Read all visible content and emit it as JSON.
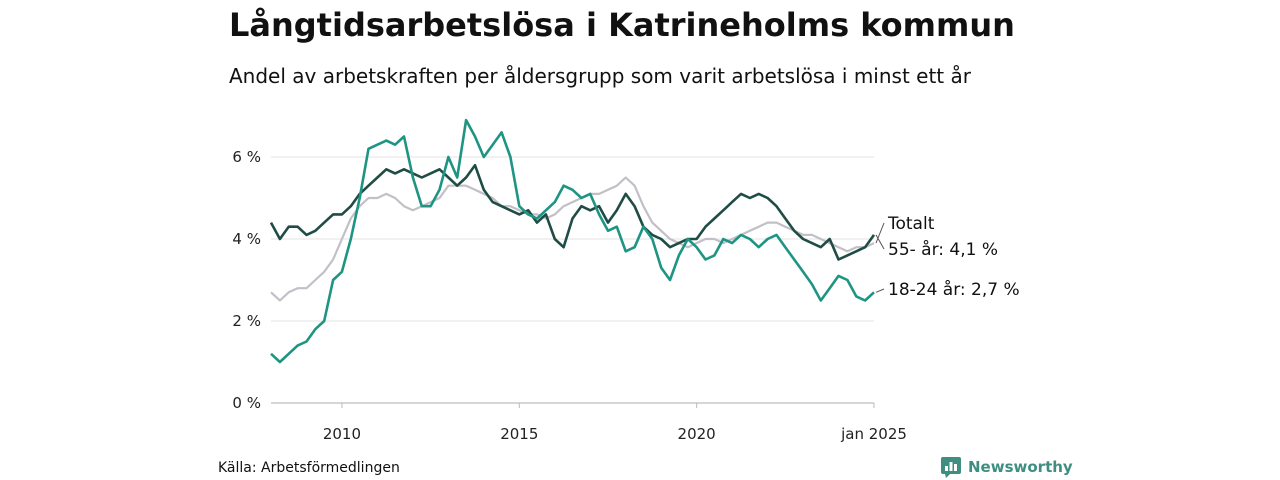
{
  "title": "Långtidsarbetslösa i Katrineholms kommun",
  "subtitle": "Andel av arbetskraften per åldersgrupp som varit arbetslösa i minst ett år",
  "source": "Källa: Arbetsförmedlingen",
  "brand": {
    "name": "Newsworthy",
    "icon": "newsworthy-logo-icon",
    "color": "#3e8e82"
  },
  "chart_data": {
    "type": "line",
    "x_range": [
      2008.0,
      2025.0
    ],
    "ylim": [
      0,
      7
    ],
    "y_ticks": [
      0,
      2,
      4,
      6
    ],
    "y_tick_labels": [
      "0 %",
      "2 %",
      "4 %",
      "6 %"
    ],
    "x_ticks": [
      2010,
      2015,
      2020,
      2025
    ],
    "x_tick_labels": [
      "2010",
      "2015",
      "2020",
      "jan 2025"
    ],
    "grid": true,
    "series": [
      {
        "name": "Totalt",
        "label": "Totalt",
        "color": "#c3bfc7",
        "x": [
          2008.0,
          2008.25,
          2008.5,
          2008.75,
          2009.0,
          2009.25,
          2009.5,
          2009.75,
          2010.0,
          2010.25,
          2010.5,
          2010.75,
          2011.0,
          2011.25,
          2011.5,
          2011.75,
          2012.0,
          2012.25,
          2012.5,
          2012.75,
          2013.0,
          2013.25,
          2013.5,
          2013.75,
          2014.0,
          2014.25,
          2014.5,
          2014.75,
          2015.0,
          2015.25,
          2015.5,
          2015.75,
          2016.0,
          2016.25,
          2016.5,
          2016.75,
          2017.0,
          2017.25,
          2017.5,
          2017.75,
          2018.0,
          2018.25,
          2018.5,
          2018.75,
          2019.0,
          2019.25,
          2019.5,
          2019.75,
          2020.0,
          2020.25,
          2020.5,
          2020.75,
          2021.0,
          2021.25,
          2021.5,
          2021.75,
          2022.0,
          2022.25,
          2022.5,
          2022.75,
          2023.0,
          2023.25,
          2023.5,
          2023.75,
          2024.0,
          2024.25,
          2024.5,
          2024.75,
          2025.0
        ],
        "values": [
          2.7,
          2.5,
          2.7,
          2.8,
          2.8,
          3.0,
          3.2,
          3.5,
          4.0,
          4.5,
          4.8,
          5.0,
          5.0,
          5.1,
          5.0,
          4.8,
          4.7,
          4.8,
          4.9,
          5.0,
          5.3,
          5.3,
          5.3,
          5.2,
          5.1,
          5.0,
          4.8,
          4.8,
          4.7,
          4.6,
          4.6,
          4.5,
          4.6,
          4.8,
          4.9,
          5.0,
          5.1,
          5.1,
          5.2,
          5.3,
          5.5,
          5.3,
          4.8,
          4.4,
          4.2,
          4.0,
          3.9,
          3.8,
          3.9,
          4.0,
          4.0,
          3.9,
          4.0,
          4.1,
          4.2,
          4.3,
          4.4,
          4.4,
          4.3,
          4.2,
          4.1,
          4.1,
          4.0,
          3.9,
          3.8,
          3.7,
          3.8,
          3.8,
          3.9
        ]
      },
      {
        "name": "55- år",
        "label": "55- år: 4,1 %",
        "color": "#1f4d45",
        "x": [
          2008.0,
          2008.25,
          2008.5,
          2008.75,
          2009.0,
          2009.25,
          2009.5,
          2009.75,
          2010.0,
          2010.25,
          2010.5,
          2010.75,
          2011.0,
          2011.25,
          2011.5,
          2011.75,
          2012.0,
          2012.25,
          2012.5,
          2012.75,
          2013.0,
          2013.25,
          2013.5,
          2013.75,
          2014.0,
          2014.25,
          2014.5,
          2014.75,
          2015.0,
          2015.25,
          2015.5,
          2015.75,
          2016.0,
          2016.25,
          2016.5,
          2016.75,
          2017.0,
          2017.25,
          2017.5,
          2017.75,
          2018.0,
          2018.25,
          2018.5,
          2018.75,
          2019.0,
          2019.25,
          2019.5,
          2019.75,
          2020.0,
          2020.25,
          2020.5,
          2020.75,
          2021.0,
          2021.25,
          2021.5,
          2021.75,
          2022.0,
          2022.25,
          2022.5,
          2022.75,
          2023.0,
          2023.25,
          2023.5,
          2023.75,
          2024.0,
          2024.25,
          2024.5,
          2024.75,
          2025.0
        ],
        "values": [
          4.4,
          4.0,
          4.3,
          4.3,
          4.1,
          4.2,
          4.4,
          4.6,
          4.6,
          4.8,
          5.1,
          5.3,
          5.5,
          5.7,
          5.6,
          5.7,
          5.6,
          5.5,
          5.6,
          5.7,
          5.5,
          5.3,
          5.5,
          5.8,
          5.2,
          4.9,
          4.8,
          4.7,
          4.6,
          4.7,
          4.4,
          4.6,
          4.0,
          3.8,
          4.5,
          4.8,
          4.7,
          4.8,
          4.4,
          4.7,
          5.1,
          4.8,
          4.3,
          4.1,
          4.0,
          3.8,
          3.9,
          4.0,
          4.0,
          4.3,
          4.5,
          4.7,
          4.9,
          5.1,
          5.0,
          5.1,
          5.0,
          4.8,
          4.5,
          4.2,
          4.0,
          3.9,
          3.8,
          4.0,
          3.5,
          3.6,
          3.7,
          3.8,
          4.1
        ]
      },
      {
        "name": "18-24 år",
        "label": "18-24 år: 2,7 %",
        "color": "#1e9483",
        "x": [
          2008.0,
          2008.25,
          2008.5,
          2008.75,
          2009.0,
          2009.25,
          2009.5,
          2009.75,
          2010.0,
          2010.25,
          2010.5,
          2010.75,
          2011.0,
          2011.25,
          2011.5,
          2011.75,
          2012.0,
          2012.25,
          2012.5,
          2012.75,
          2013.0,
          2013.25,
          2013.5,
          2013.75,
          2014.0,
          2014.25,
          2014.5,
          2014.75,
          2015.0,
          2015.25,
          2015.5,
          2015.75,
          2016.0,
          2016.25,
          2016.5,
          2016.75,
          2017.0,
          2017.25,
          2017.5,
          2017.75,
          2018.0,
          2018.25,
          2018.5,
          2018.75,
          2019.0,
          2019.25,
          2019.5,
          2019.75,
          2020.0,
          2020.25,
          2020.5,
          2020.75,
          2021.0,
          2021.25,
          2021.5,
          2021.75,
          2022.0,
          2022.25,
          2022.5,
          2022.75,
          2023.0,
          2023.25,
          2023.5,
          2023.75,
          2024.0,
          2024.25,
          2024.5,
          2024.75,
          2025.0
        ],
        "values": [
          1.2,
          1.0,
          1.2,
          1.4,
          1.5,
          1.8,
          2.0,
          3.0,
          3.2,
          4.0,
          5.0,
          6.2,
          6.3,
          6.4,
          6.3,
          6.5,
          5.5,
          4.8,
          4.8,
          5.2,
          6.0,
          5.5,
          6.9,
          6.5,
          6.0,
          6.3,
          6.6,
          6.0,
          4.8,
          4.6,
          4.5,
          4.7,
          4.9,
          5.3,
          5.2,
          5.0,
          5.1,
          4.6,
          4.2,
          4.3,
          3.7,
          3.8,
          4.3,
          4.0,
          3.3,
          3.0,
          3.6,
          4.0,
          3.8,
          3.5,
          3.6,
          4.0,
          3.9,
          4.1,
          4.0,
          3.8,
          4.0,
          4.1,
          3.8,
          3.5,
          3.2,
          2.9,
          2.5,
          2.8,
          3.1,
          3.0,
          2.6,
          2.5,
          2.7
        ]
      }
    ]
  }
}
